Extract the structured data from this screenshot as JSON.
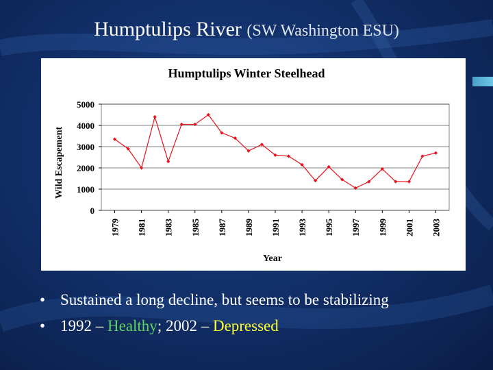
{
  "slide": {
    "title_main": "Humptulips River",
    "title_sub": "(SW Washington ESU)",
    "bullets": [
      {
        "text": "Sustained a long decline, but seems to be stabilizing"
      },
      {
        "prefix": "1992 – ",
        "healthy": "Healthy",
        "mid": "; 2002 – ",
        "depressed": "Depressed"
      }
    ],
    "bullet_glyph": "•"
  },
  "colors": {
    "background": "#0a1f4c",
    "series": "#e8101a",
    "healthy": "#5fd35f",
    "depressed": "#ffff33"
  },
  "chart_data": {
    "type": "line",
    "title": "Humptulips Winter Steelhead",
    "xlabel": "Year",
    "ylabel": "Wild Escapement",
    "ylim": [
      0,
      5000
    ],
    "yticks": [
      0,
      1000,
      2000,
      3000,
      4000,
      5000
    ],
    "xlim": [
      1978,
      2004
    ],
    "xticks": [
      1979,
      1981,
      1983,
      1985,
      1987,
      1989,
      1991,
      1993,
      1995,
      1997,
      1999,
      2001,
      2003
    ],
    "grid": true,
    "x": [
      1979,
      1980,
      1981,
      1982,
      1983,
      1984,
      1985,
      1986,
      1987,
      1988,
      1989,
      1990,
      1991,
      1992,
      1993,
      1994,
      1995,
      1996,
      1997,
      1998,
      1999,
      2000,
      2001,
      2002,
      2003
    ],
    "y": [
      3350,
      2900,
      2000,
      4400,
      2300,
      4050,
      4050,
      4500,
      3650,
      3400,
      2800,
      3100,
      2600,
      2550,
      2150,
      1400,
      2050,
      1450,
      1050,
      1350,
      1950,
      1350,
      1350,
      2550,
      2700
    ]
  }
}
